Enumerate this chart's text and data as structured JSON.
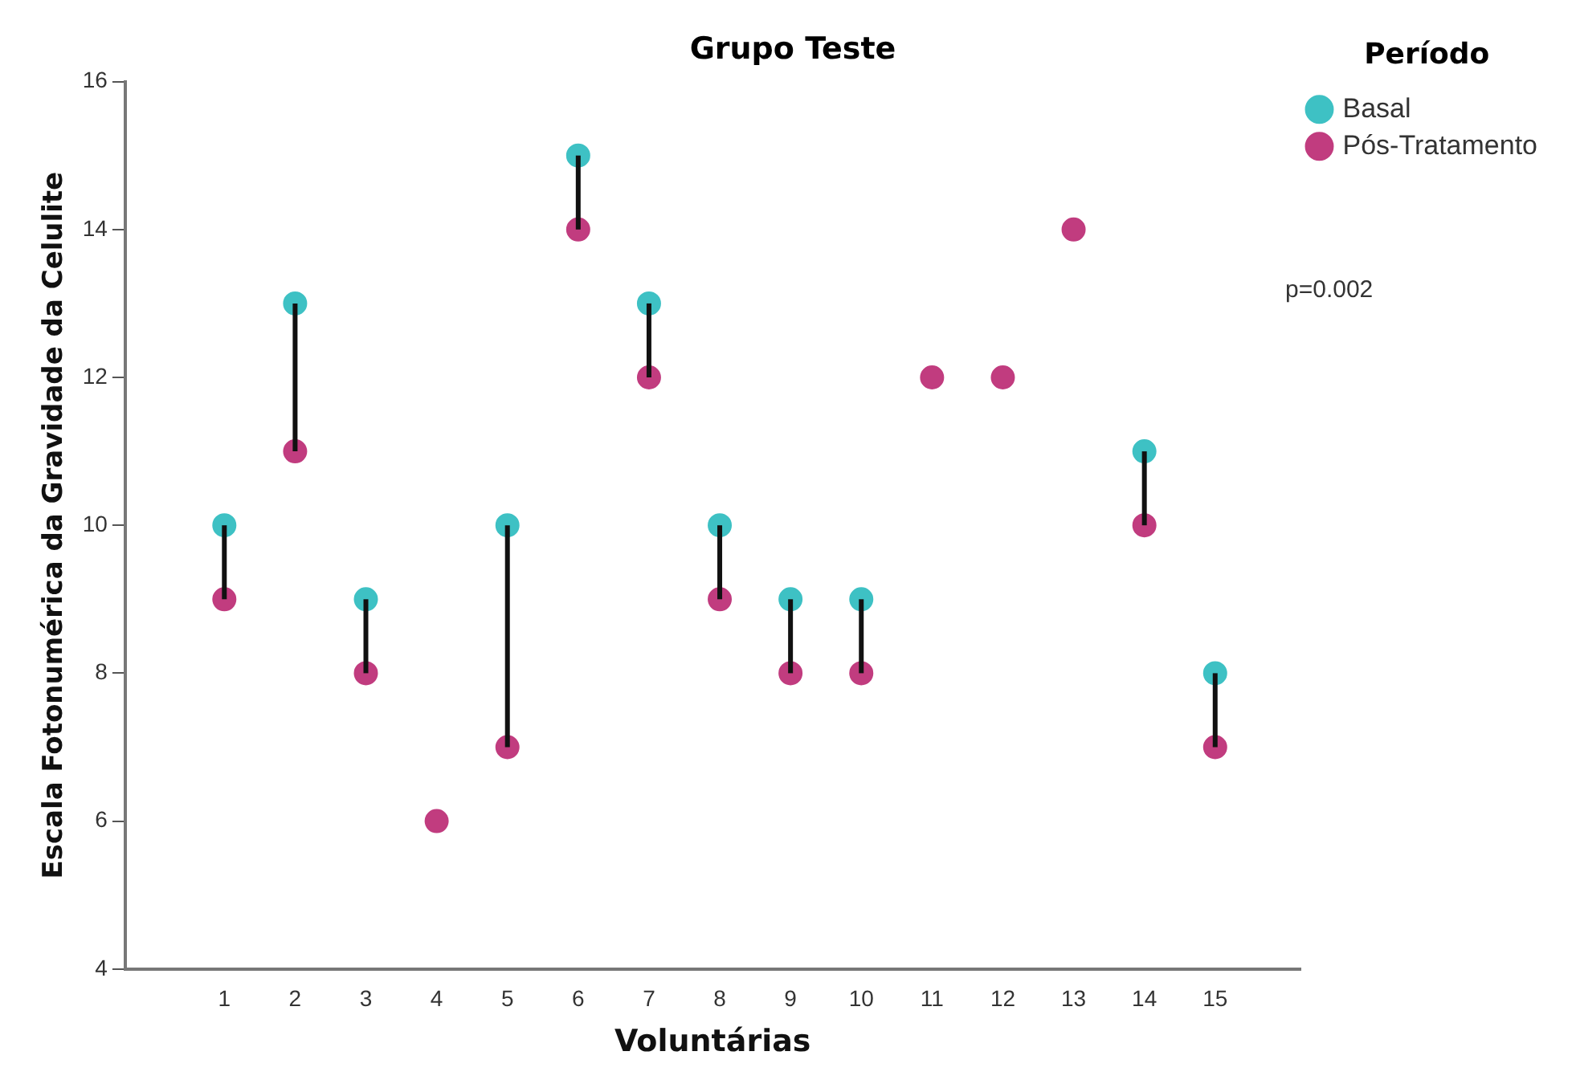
{
  "chart_data": {
    "type": "scatter",
    "title": "Grupo Teste",
    "xlabel": "Voluntárias",
    "ylabel": "Escala Fotonumérica da Gravidade da Celulite",
    "legend_title": "Período",
    "x": [
      1,
      2,
      3,
      4,
      5,
      6,
      7,
      8,
      9,
      10,
      11,
      12,
      13,
      14,
      15
    ],
    "series": [
      {
        "name": "Basal",
        "color": "#3ec1c4",
        "values": [
          10,
          13,
          9,
          null,
          10,
          15,
          13,
          10,
          9,
          9,
          null,
          null,
          null,
          11,
          8
        ]
      },
      {
        "name": "Pós-Tratamento",
        "color": "#c13c7f",
        "values": [
          9,
          11,
          8,
          6,
          7,
          14,
          12,
          9,
          8,
          8,
          12,
          12,
          14,
          10,
          7
        ],
        "errors": [
          [
            9,
            10
          ],
          [
            11,
            13
          ],
          [
            8,
            9
          ],
          null,
          [
            7,
            10
          ],
          [
            14,
            15
          ],
          [
            12,
            13
          ],
          [
            9,
            10
          ],
          [
            8,
            9
          ],
          [
            8,
            9
          ],
          null,
          null,
          null,
          [
            10,
            11
          ],
          [
            7,
            8
          ]
        ]
      }
    ],
    "xlim": [
      -0.4,
      16.2
    ],
    "xticks": [
      1,
      2,
      3,
      4,
      5,
      6,
      7,
      8,
      9,
      10,
      11,
      12,
      13,
      14,
      15
    ],
    "ylim": [
      4,
      16
    ],
    "yticks": [
      4,
      6,
      8,
      10,
      12,
      14,
      16
    ],
    "annotations": [
      "p=0.002"
    ],
    "grid": false,
    "legend": "top right",
    "marker": "circle"
  }
}
